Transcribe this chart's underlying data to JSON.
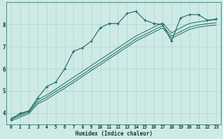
{
  "xlabel": "Humidex (Indice chaleur)",
  "ylabel": "",
  "bg_color": "#ceeae6",
  "grid_color": "#afd4cf",
  "line_color": "#1a6b5e",
  "xlim": [
    -0.5,
    23.5
  ],
  "ylim": [
    3.5,
    9.0
  ],
  "yticks": [
    4,
    5,
    6,
    7,
    8
  ],
  "xticks": [
    0,
    1,
    2,
    3,
    4,
    5,
    6,
    7,
    8,
    9,
    10,
    11,
    12,
    13,
    14,
    15,
    16,
    17,
    18,
    19,
    20,
    21,
    22,
    23
  ],
  "line1_x": [
    0,
    1,
    2,
    3,
    4,
    5,
    6,
    7,
    8,
    9,
    10,
    11,
    12,
    13,
    14,
    15,
    16,
    17,
    18,
    19,
    20,
    21,
    22,
    23
  ],
  "line1_y": [
    3.7,
    4.0,
    4.1,
    4.7,
    5.2,
    5.4,
    6.0,
    6.8,
    6.95,
    7.25,
    7.85,
    8.05,
    8.05,
    8.5,
    8.6,
    8.2,
    8.05,
    8.0,
    7.25,
    8.3,
    8.45,
    8.45,
    8.2,
    8.25
  ],
  "line2_x": [
    0,
    2,
    3,
    4,
    5,
    6,
    7,
    8,
    9,
    10,
    11,
    12,
    13,
    14,
    15,
    16,
    17,
    18,
    19,
    20,
    21,
    22,
    23
  ],
  "line2_y": [
    3.78,
    4.1,
    4.6,
    4.82,
    5.08,
    5.35,
    5.62,
    5.88,
    6.15,
    6.42,
    6.68,
    6.95,
    7.22,
    7.48,
    7.68,
    7.88,
    8.08,
    7.62,
    7.85,
    8.05,
    8.12,
    8.18,
    8.22
  ],
  "line3_x": [
    0,
    2,
    3,
    4,
    5,
    6,
    7,
    8,
    9,
    10,
    11,
    12,
    13,
    14,
    15,
    16,
    17,
    18,
    19,
    20,
    21,
    22,
    23
  ],
  "line3_y": [
    3.72,
    4.05,
    4.5,
    4.72,
    4.98,
    5.22,
    5.48,
    5.75,
    6.02,
    6.28,
    6.55,
    6.82,
    7.08,
    7.35,
    7.55,
    7.75,
    7.95,
    7.48,
    7.68,
    7.88,
    7.98,
    8.04,
    8.08
  ],
  "line4_x": [
    0,
    2,
    3,
    4,
    5,
    6,
    7,
    8,
    9,
    10,
    11,
    12,
    13,
    14,
    15,
    16,
    17,
    18,
    19,
    20,
    21,
    22,
    23
  ],
  "line4_y": [
    3.65,
    3.98,
    4.42,
    4.62,
    4.88,
    5.12,
    5.38,
    5.65,
    5.92,
    6.18,
    6.45,
    6.72,
    6.98,
    7.25,
    7.45,
    7.65,
    7.85,
    7.38,
    7.58,
    7.78,
    7.88,
    7.94,
    7.98
  ]
}
